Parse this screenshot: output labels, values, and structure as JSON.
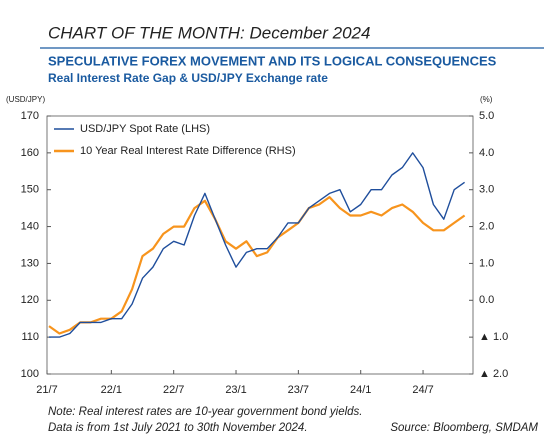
{
  "header": "CHART OF THE MONTH: December 2024",
  "notes": [
    "Note: Real interest rates are 10-year government bond yields.",
    "Data is from 1st July 2021 to 30th November 2024."
  ],
  "source": "Source: Bloomberg, SMDAM",
  "chart_data": {
    "type": "line",
    "title": "SPECULATIVE FOREX MOVEMENT AND ITS LOGICAL CONSEQUENCES",
    "subtitle": "Real Interest Rate Gap & USD/JPY Exchange rate",
    "ylabel": "(USD/JPY)",
    "y2label": "(%)",
    "x": [
      "21/7",
      "21/8",
      "21/9",
      "21/10",
      "21/11",
      "21/12",
      "22/1",
      "22/2",
      "22/3",
      "22/4",
      "22/5",
      "22/6",
      "22/7",
      "22/8",
      "22/9",
      "22/10",
      "22/11",
      "22/12",
      "23/1",
      "23/2",
      "23/3",
      "23/4",
      "23/5",
      "23/6",
      "23/7",
      "23/8",
      "23/9",
      "23/10",
      "23/11",
      "23/12",
      "24/1",
      "24/2",
      "24/3",
      "24/4",
      "24/5",
      "24/6",
      "24/7",
      "24/8",
      "24/9",
      "24/10",
      "24/11"
    ],
    "xticks": [
      "21/7",
      "22/1",
      "22/7",
      "23/1",
      "23/7",
      "24/1",
      "24/7"
    ],
    "ylim": [
      100,
      170
    ],
    "yticks": [
      100,
      110,
      120,
      130,
      140,
      150,
      160,
      170
    ],
    "y2lim": [
      -2,
      5
    ],
    "y2ticks": [
      {
        "value": 5,
        "label": "5.0"
      },
      {
        "value": 4,
        "label": "4.0"
      },
      {
        "value": 3,
        "label": "3.0"
      },
      {
        "value": 2,
        "label": "2.0"
      },
      {
        "value": 1,
        "label": "1.0"
      },
      {
        "value": 0,
        "label": "0.0"
      },
      {
        "value": -1,
        "label": "▲ 1.0"
      },
      {
        "value": -2,
        "label": "▲ 2.0"
      }
    ],
    "legend": "upper left",
    "series": [
      {
        "name": "USD/JPY Spot Rate (LHS)",
        "color": "#1f4e9c",
        "values": [
          110,
          110,
          111,
          114,
          114,
          114,
          115,
          115,
          119,
          126,
          129,
          134,
          136,
          135,
          143,
          149,
          142,
          135,
          129,
          133,
          134,
          134,
          137,
          141,
          141,
          145,
          147,
          149,
          150,
          144,
          146,
          150,
          150,
          154,
          156,
          160,
          156,
          146,
          142,
          150,
          152
        ]
      },
      {
        "name": "10 Year Real Interest Rate Difference (RHS)",
        "color": "#f7941d",
        "axis": "y2",
        "values": [
          -0.7,
          -0.9,
          -0.8,
          -0.6,
          -0.6,
          -0.5,
          -0.5,
          -0.3,
          0.3,
          1.2,
          1.4,
          1.8,
          2.0,
          2.0,
          2.5,
          2.7,
          2.2,
          1.6,
          1.4,
          1.6,
          1.2,
          1.3,
          1.7,
          1.9,
          2.1,
          2.5,
          2.6,
          2.8,
          2.5,
          2.3,
          2.3,
          2.4,
          2.3,
          2.5,
          2.6,
          2.4,
          2.1,
          1.9,
          1.9,
          2.1,
          2.3
        ]
      }
    ]
  }
}
